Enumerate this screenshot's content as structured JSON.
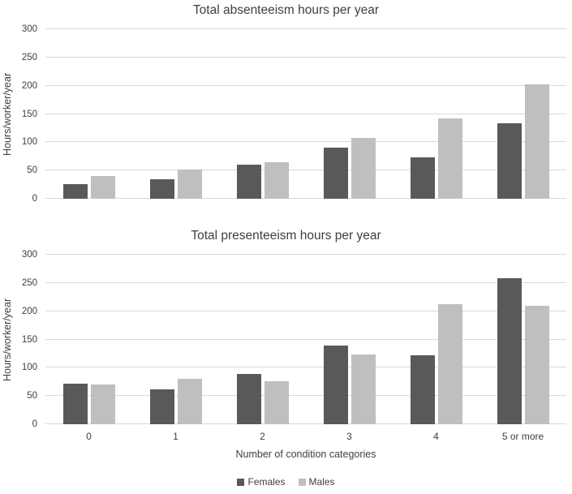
{
  "figure": {
    "xaxis_title": "Number of condition categories",
    "legend": {
      "items": [
        {
          "label": "Females",
          "color": "#595959"
        },
        {
          "label": "Males",
          "color": "#bfbfbf"
        }
      ]
    },
    "colors": {
      "females_bar": "#595959",
      "males_bar": "#bfbfbf",
      "gridline": "#d9d9d9",
      "text": "#404040",
      "background": "#ffffff"
    }
  },
  "chart_data": [
    {
      "type": "bar",
      "title": "Total absenteeism hours per year",
      "xlabel": "Number of condition categories",
      "ylabel": "Hours/worker/year",
      "categories": [
        "0",
        "1",
        "2",
        "3",
        "4",
        "5 or more"
      ],
      "series": [
        {
          "name": "Females",
          "color": "#595959",
          "values": [
            26,
            35,
            60,
            90,
            73,
            134
          ]
        },
        {
          "name": "Males",
          "color": "#bfbfbf",
          "values": [
            40,
            52,
            64,
            108,
            142,
            202
          ]
        }
      ],
      "ylim": [
        0,
        300
      ],
      "yticks": [
        0,
        50,
        100,
        150,
        200,
        250,
        300
      ],
      "grid": true,
      "legend_position": "shared-bottom"
    },
    {
      "type": "bar",
      "title": "Total presenteeism hours per year",
      "xlabel": "Number of condition categories",
      "ylabel": "Hours/worker/year",
      "categories": [
        "0",
        "1",
        "2",
        "3",
        "4",
        "5 or more"
      ],
      "series": [
        {
          "name": "Females",
          "color": "#595959",
          "values": [
            72,
            62,
            89,
            139,
            122,
            259
          ]
        },
        {
          "name": "Males",
          "color": "#bfbfbf",
          "values": [
            70,
            80,
            76,
            123,
            212,
            209
          ]
        }
      ],
      "ylim": [
        0,
        300
      ],
      "yticks": [
        0,
        50,
        100,
        150,
        200,
        250,
        300
      ],
      "grid": true,
      "legend_position": "shared-bottom"
    }
  ]
}
